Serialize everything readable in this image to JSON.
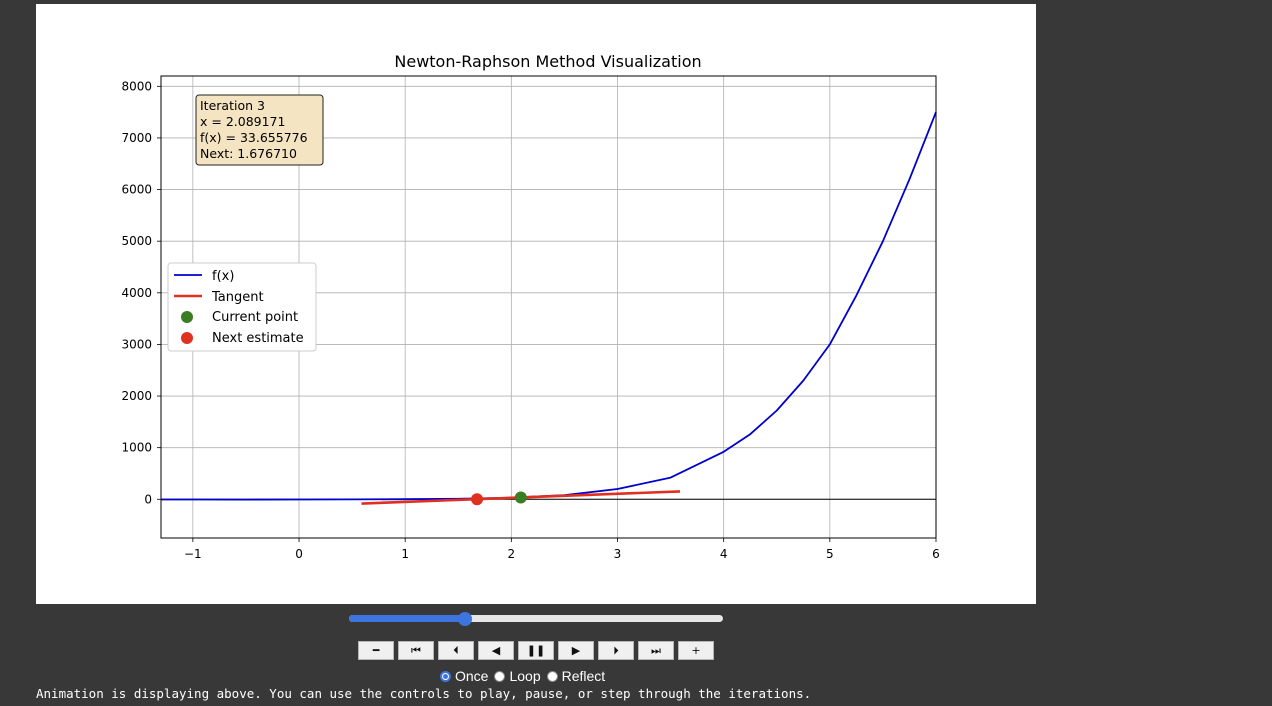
{
  "chart_data": {
    "type": "line",
    "title": "Newton-Raphson Method Visualization",
    "xlabel": "",
    "ylabel": "",
    "xlim": [
      -1.3,
      6
    ],
    "ylim": [
      -750,
      8200
    ],
    "xticks": [
      -1,
      0,
      1,
      2,
      3,
      4,
      5,
      6
    ],
    "xtick_labels": [
      "−1",
      "0",
      "1",
      "2",
      "3",
      "4",
      "5",
      "6"
    ],
    "yticks": [
      0,
      1000,
      2000,
      3000,
      4000,
      5000,
      6000,
      7000,
      8000
    ],
    "ytick_labels": [
      "0",
      "1000",
      "2000",
      "3000",
      "4000",
      "5000",
      "6000",
      "7000",
      "8000"
    ],
    "grid": true,
    "legend_position": "center-left",
    "series": [
      {
        "name": "f(x)",
        "kind": "line",
        "color": "#0000cc",
        "x": [
          -1.3,
          -1.0,
          -0.5,
          0,
          0.5,
          1.0,
          1.5,
          2.0,
          2.5,
          3.0,
          3.5,
          4.0,
          4.25,
          4.5,
          4.75,
          5.0,
          5.25,
          5.5,
          5.75,
          6.0
        ],
        "y": [
          -5,
          -5,
          -6,
          -5,
          -3,
          1,
          10,
          30,
          80,
          200,
          420,
          920,
          1260,
          1720,
          2300,
          3000,
          3950,
          5000,
          6200,
          7500
        ]
      },
      {
        "name": "Tangent",
        "kind": "line",
        "color": "#e03020",
        "x": [
          0.589,
          3.589
        ],
        "y": [
          -84,
          152
        ]
      },
      {
        "name": "Current point",
        "kind": "point",
        "color": "#3a7d22",
        "x": [
          2.089171
        ],
        "y": [
          33.655776
        ]
      },
      {
        "name": "Next estimate",
        "kind": "point",
        "color": "#e03020",
        "x": [
          1.67671
        ],
        "y": [
          0
        ]
      }
    ],
    "info_box": [
      "Iteration 3",
      "x = 2.089171",
      "f(x) = 33.655776",
      "Next: 1.676710"
    ]
  },
  "player": {
    "slider_fraction": 0.31,
    "buttons": [
      {
        "name": "decrease-speed-button",
        "glyph": "━"
      },
      {
        "name": "first-frame-button",
        "glyph": "⏮"
      },
      {
        "name": "previous-frame-button",
        "glyph": "⏴"
      },
      {
        "name": "play-reverse-button",
        "glyph": "◀"
      },
      {
        "name": "pause-button",
        "glyph": "❚❚"
      },
      {
        "name": "play-button",
        "glyph": "▶"
      },
      {
        "name": "next-frame-button",
        "glyph": "⏵"
      },
      {
        "name": "last-frame-button",
        "glyph": "⏭"
      },
      {
        "name": "increase-speed-button",
        "glyph": "+"
      }
    ],
    "modes": [
      {
        "label": "Once",
        "checked": true
      },
      {
        "label": "Loop",
        "checked": false
      },
      {
        "label": "Reflect",
        "checked": false
      }
    ],
    "status_text": "Animation is displaying above. You can use the controls to play, pause, or step through the iterations."
  }
}
